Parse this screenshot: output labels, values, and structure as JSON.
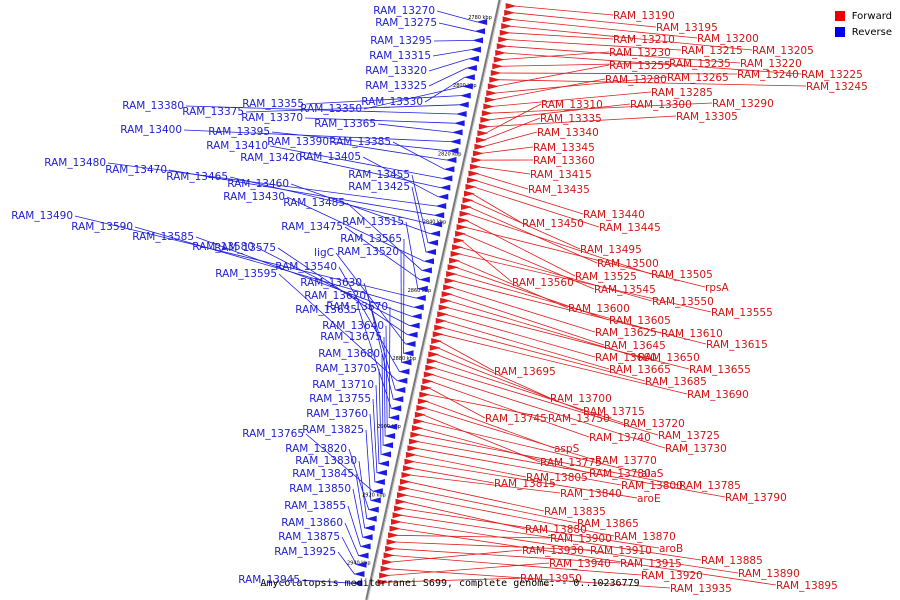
{
  "caption": "Amycolatopsis mediterranei S699, complete genome. - 0..10236779",
  "legend": [
    {
      "label": "Forward",
      "color": "#ee0000"
    },
    {
      "label": "Reverse",
      "color": "#0000ee"
    }
  ],
  "colors": {
    "forward": "#e01c1c",
    "reverse": "#1c1ce0",
    "axis": "#7a7a7a"
  },
  "ticks": [
    "2780 kbp",
    "2800 kbp",
    "2820 kbp",
    "2840 kbp",
    "2860 kbp",
    "2880 kbp",
    "2900 kbp",
    "2920 kbp",
    "2940 kbp"
  ],
  "forward_genes": [
    "RAM_13190",
    "RAM_13195",
    "RAM_13200",
    "RAM_13205",
    "RAM_13210",
    "RAM_13215",
    "RAM_13220",
    "RAM_13225",
    "RAM_13230",
    "RAM_13235",
    "RAM_13240",
    "RAM_13245",
    "RAM_13255",
    "RAM_13265",
    "RAM_13280",
    "RAM_13285",
    "RAM_13290",
    "RAM_13300",
    "RAM_13305",
    "RAM_13310",
    "RAM_13335",
    "RAM_13340",
    "RAM_13345",
    "RAM_13360",
    "RAM_13415",
    "RAM_13435",
    "RAM_13440",
    "RAM_13445",
    "RAM_13450",
    "RAM_13495",
    "RAM_13500",
    "RAM_13505",
    "RAM_13525",
    "rpsA",
    "RAM_13545",
    "RAM_13560",
    "RAM_13550",
    "RAM_13555",
    "RAM_13600",
    "RAM_13605",
    "RAM_13610",
    "RAM_13615",
    "RAM_13625",
    "RAM_13645",
    "RAM_13650",
    "RAM_13655",
    "RAM_13660",
    "RAM_13665",
    "RAM_13685",
    "RAM_13690",
    "RAM_13695",
    "RAM_13700",
    "RAM_13715",
    "RAM_13720",
    "RAM_13725",
    "RAM_13730",
    "RAM_13740",
    "RAM_13745",
    "RAM_13750",
    "aspS",
    "RAM_13770",
    "RAM_13775",
    "alaS",
    "RAM_13780",
    "RAM_13785",
    "RAM_13790",
    "RAM_13800",
    "RAM_13805",
    "aroE",
    "RAM_13815",
    "RAM_13840",
    "RAM_13835",
    "RAM_13865",
    "RAM_13870",
    "RAM_13880",
    "aroB",
    "RAM_13885",
    "RAM_13890",
    "RAM_13895",
    "RAM_13900",
    "RAM_13910",
    "RAM_13915",
    "RAM_13920",
    "RAM_13930",
    "RAM_13935",
    "RAM_13940",
    "RAM_13950"
  ],
  "reverse_genes": [
    "RAM_13270",
    "RAM_13275",
    "RAM_13295",
    "RAM_13315",
    "RAM_13320",
    "RAM_13325",
    "RAM_13330",
    "RAM_13350",
    "RAM_13355",
    "RAM_13375",
    "RAM_13380",
    "RAM_13370",
    "RAM_13365",
    "RAM_13400",
    "RAM_13395",
    "RAM_13390",
    "RAM_13385",
    "RAM_13410",
    "RAM_13420",
    "RAM_13405",
    "RAM_13480",
    "RAM_13470",
    "RAM_13465",
    "RAM_13460",
    "RAM_13455",
    "RAM_13425",
    "RAM_13430",
    "RAM_13485",
    "RAM_13475",
    "RAM_13515",
    "RAM_13490",
    "RAM_13590",
    "RAM_13585",
    "RAM_13580",
    "RAM_13575",
    "ligC",
    "RAM_13565",
    "RAM_13520",
    "RAM_13540",
    "RAM_13595",
    "RAM_13630",
    "RAM_13620",
    "RAM_13635",
    "RAM_13670",
    "RAM_13640",
    "RAM_13675",
    "RAM_13680",
    "RAM_13705",
    "RAM_13710",
    "RAM_13755",
    "RAM_13760",
    "RAM_13765",
    "RAM_13825",
    "RAM_13820",
    "RAM_13830",
    "RAM_13845",
    "RAM_13850",
    "RAM_13855",
    "RAM_13860",
    "RAM_13875",
    "RAM_13925",
    "RAM_13945"
  ]
}
